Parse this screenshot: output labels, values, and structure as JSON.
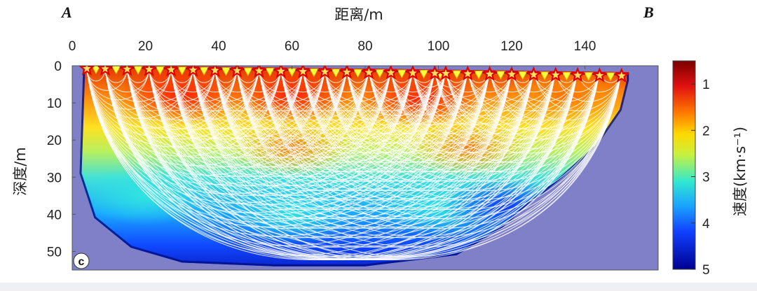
{
  "figure": {
    "corner_left": "A",
    "corner_right": "B",
    "panel_label": "c"
  },
  "chart_data": {
    "type": "heatmap",
    "title": "",
    "xlabel": "距离/m",
    "ylabel": "深度/m",
    "xlim": [
      0,
      160
    ],
    "ylim": [
      55,
      0
    ],
    "x_ticks": [
      "0",
      "20",
      "40",
      "60",
      "80",
      "100",
      "120",
      "140"
    ],
    "y_ticks": [
      "0",
      "10",
      "20",
      "30",
      "40",
      "50"
    ],
    "colorbar": {
      "label": "速度(km·s⁻¹)",
      "ticks": [
        "1",
        "2",
        "3",
        "4",
        "5"
      ],
      "range": [
        0.5,
        5
      ]
    },
    "surface": [
      [
        3,
        0
      ],
      [
        152,
        2
      ]
    ],
    "stations_x": [
      4,
      9,
      15,
      21,
      27,
      33,
      39,
      45,
      51,
      57,
      63,
      69,
      75,
      81,
      87,
      93,
      99,
      102,
      108,
      114,
      120,
      126,
      132,
      138,
      144,
      150
    ],
    "model_boundary": [
      [
        2,
        29
      ],
      [
        6,
        41
      ],
      [
        16,
        49
      ],
      [
        30,
        53
      ],
      [
        55,
        54
      ],
      [
        80,
        54
      ],
      [
        105,
        51
      ],
      [
        117,
        44
      ],
      [
        124,
        38
      ],
      [
        134,
        30
      ],
      [
        143,
        22
      ],
      [
        150,
        12
      ],
      [
        152,
        4
      ]
    ],
    "velocity_anomalies": [
      {
        "x": 30,
        "z": 8,
        "v": 1.0
      },
      {
        "x": 60,
        "z": 8,
        "v": 1.1
      },
      {
        "x": 95,
        "z": 9,
        "v": 1.2
      },
      {
        "x": 135,
        "z": 8,
        "v": 1.6
      },
      {
        "x": 108,
        "z": 22,
        "v": 1.6
      },
      {
        "x": 60,
        "z": 22,
        "v": 2.0
      },
      {
        "x": 20,
        "z": 35,
        "v": 3.3
      },
      {
        "x": 60,
        "z": 40,
        "v": 3.6
      },
      {
        "x": 100,
        "z": 38,
        "v": 3.4
      },
      {
        "x": 118,
        "z": 38,
        "v": 4.4
      }
    ],
    "grid": false,
    "colormap": [
      "#8b0000",
      "#ff2a00",
      "#ffb000",
      "#ffff00",
      "#2ad7ff",
      "#1e5aff",
      "#0000a0"
    ]
  }
}
